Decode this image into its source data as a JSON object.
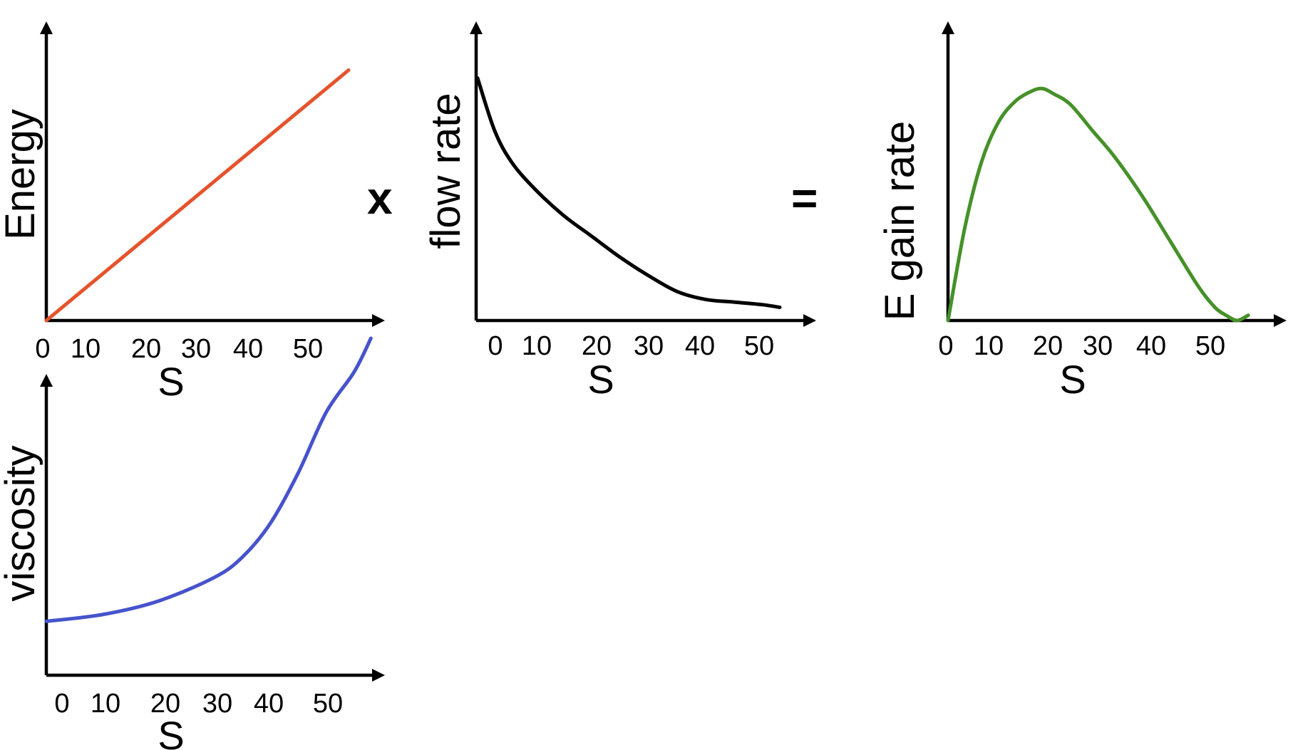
{
  "operators": {
    "times": "x",
    "equals": "="
  },
  "chart_data": [
    {
      "type": "line",
      "ylabel": "Energy",
      "xlabel": "S",
      "x_ticks": [
        "0",
        "10",
        "20",
        "30",
        "40",
        "50"
      ],
      "color": "#e5532d",
      "xlim": [
        0,
        60
      ],
      "ylim": [
        0,
        1
      ],
      "series": [
        {
          "x": [
            0,
            53
          ],
          "y": [
            0,
            0.95
          ]
        }
      ]
    },
    {
      "type": "line",
      "ylabel": "flow rate",
      "xlabel": "S",
      "x_ticks": [
        "0",
        "10",
        "20",
        "30",
        "40",
        "50"
      ],
      "color": "#000000",
      "xlim": [
        0,
        60
      ],
      "ylim": [
        0,
        1
      ],
      "series": [
        {
          "x": [
            0,
            3,
            6,
            10,
            15,
            20,
            25,
            30,
            35,
            40,
            45,
            50,
            53
          ],
          "y": [
            0.92,
            0.72,
            0.6,
            0.5,
            0.4,
            0.32,
            0.24,
            0.17,
            0.11,
            0.08,
            0.07,
            0.06,
            0.05
          ]
        }
      ]
    },
    {
      "type": "line",
      "ylabel": "E gain rate",
      "xlabel": "S",
      "x_ticks": [
        "0",
        "10",
        "20",
        "30",
        "40",
        "50"
      ],
      "color": "#459129",
      "xlim": [
        0,
        60
      ],
      "ylim": [
        0,
        1
      ],
      "series": [
        {
          "x": [
            0,
            3,
            6,
            9,
            12,
            15,
            17,
            19,
            22,
            26,
            30,
            35,
            40,
            45,
            48,
            50,
            52,
            54
          ],
          "y": [
            0.0,
            0.35,
            0.6,
            0.75,
            0.83,
            0.87,
            0.88,
            0.86,
            0.82,
            0.72,
            0.62,
            0.47,
            0.3,
            0.13,
            0.05,
            0.02,
            0.0,
            0.02
          ]
        }
      ]
    },
    {
      "type": "line",
      "ylabel": "viscosity",
      "xlabel": "S",
      "x_ticks": [
        "0",
        "10",
        "20",
        "30",
        "40",
        "50"
      ],
      "color": "#4653cc",
      "xlim": [
        0,
        60
      ],
      "ylim": [
        0,
        1
      ],
      "series": [
        {
          "x": [
            0,
            10,
            20,
            30,
            35,
            40,
            45,
            50,
            55,
            58
          ],
          "y": [
            0.16,
            0.18,
            0.22,
            0.29,
            0.35,
            0.45,
            0.6,
            0.78,
            0.9,
            1.0
          ]
        }
      ]
    }
  ]
}
